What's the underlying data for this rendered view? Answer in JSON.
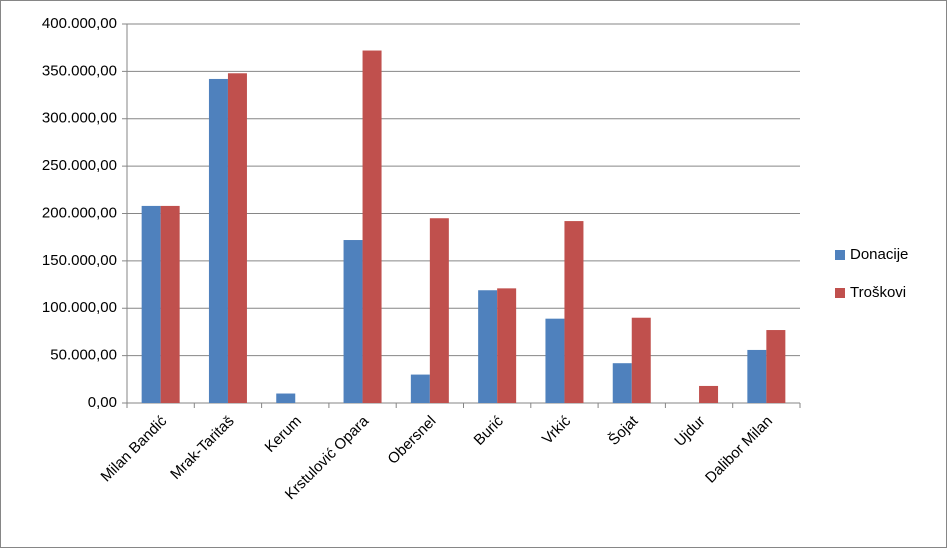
{
  "chart_data": {
    "type": "bar",
    "categories": [
      "Milan Bandić",
      "Mrak-Taritaš",
      "Kerum",
      "Krstulović Opara",
      "Obersnel",
      "Burić",
      "Vrkić",
      "Šojat",
      "Ujdur",
      "Dalibor Milan"
    ],
    "series": [
      {
        "name": "Donacije",
        "color": "#4f81bd",
        "values": [
          208000,
          342000,
          10000,
          172000,
          30000,
          119000,
          89000,
          42000,
          0,
          56000
        ]
      },
      {
        "name": "Troškovi",
        "color": "#c0504d",
        "values": [
          208000,
          348000,
          0,
          372000,
          195000,
          121000,
          192000,
          90000,
          18000,
          77000
        ]
      }
    ],
    "ylim": [
      0,
      400000
    ],
    "yticks": [
      {
        "value": 0,
        "label": "0,00"
      },
      {
        "value": 50000,
        "label": "50.000,00"
      },
      {
        "value": 100000,
        "label": "100.000,00"
      },
      {
        "value": 150000,
        "label": "150.000,00"
      },
      {
        "value": 200000,
        "label": "200.000,00"
      },
      {
        "value": 250000,
        "label": "250.000,00"
      },
      {
        "value": 300000,
        "label": "300.000,00"
      },
      {
        "value": 350000,
        "label": "350.000,00"
      },
      {
        "value": 400000,
        "label": "400.000,00"
      }
    ],
    "grid": true,
    "legend": "right"
  }
}
